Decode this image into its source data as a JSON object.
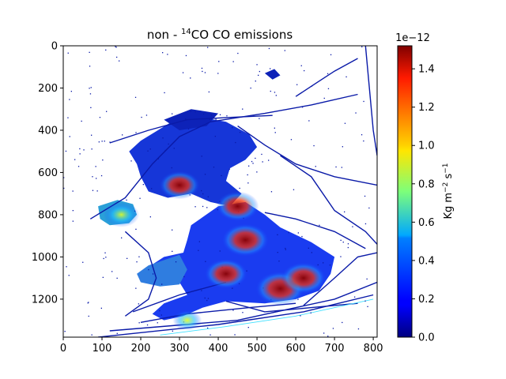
{
  "chart_data": {
    "type": "heatmap",
    "title": {
      "prefix": "non - ",
      "superscript": "14",
      "suffix": "CO CO emissions"
    },
    "xlabel": "",
    "ylabel": "",
    "xlim": [
      0,
      810
    ],
    "ylim": [
      1380,
      0
    ],
    "y_inverted": true,
    "x_ticks": [
      0,
      100,
      200,
      300,
      400,
      500,
      600,
      700,
      800
    ],
    "y_ticks": [
      0,
      200,
      400,
      600,
      800,
      1000,
      1200
    ],
    "colormap": "jet",
    "colorbar": {
      "range": [
        0.0,
        1.52
      ],
      "ticks": [
        "0.0",
        "0.2",
        "0.4",
        "0.6",
        "0.8",
        "1.0",
        "1.2",
        "1.4"
      ],
      "offset_label": "1e−12",
      "label": {
        "base": "Kg m",
        "exp1": "−2",
        "mid": " s",
        "exp2": "−1"
      }
    },
    "hotspots": [
      {
        "x": 560,
        "y": 1150,
        "level": 1.5
      },
      {
        "x": 470,
        "y": 920,
        "level": 1.4
      },
      {
        "x": 620,
        "y": 1100,
        "level": 1.3
      },
      {
        "x": 420,
        "y": 1080,
        "level": 1.2
      },
      {
        "x": 300,
        "y": 660,
        "level": 1.1
      },
      {
        "x": 150,
        "y": 800,
        "level": 0.9
      },
      {
        "x": 320,
        "y": 1300,
        "level": 0.6
      },
      {
        "x": 450,
        "y": 760,
        "level": 1.2
      }
    ]
  },
  "colors": {
    "low": "#00008f",
    "mid": "#1f4fff",
    "high": "#8b0000",
    "background": "#ffffff"
  }
}
